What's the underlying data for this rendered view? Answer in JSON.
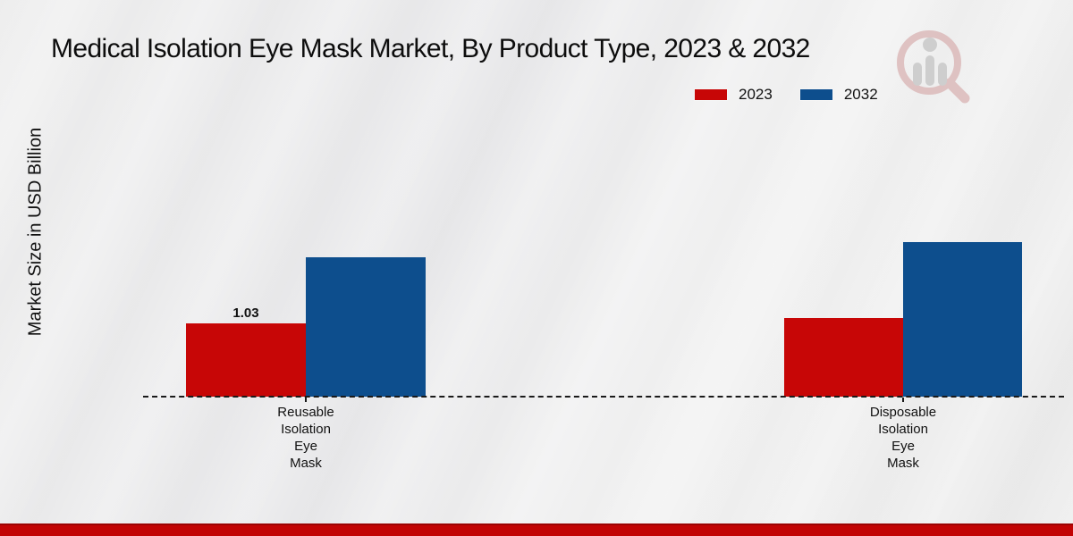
{
  "title": "Medical Isolation Eye Mask Market, By Product Type, 2023 & 2032",
  "y_axis_label": "Market Size in USD Billion",
  "legend": [
    {
      "label": "2023",
      "color": "#c70606"
    },
    {
      "label": "2032",
      "color": "#0d4e8d"
    }
  ],
  "colors": {
    "bar_2023": "#c70606",
    "bar_2032": "#0d4e8d",
    "footer_strip": "#c20404",
    "baseline": "#1a1a1a"
  },
  "logo": {
    "name": "market-research-watermark"
  },
  "chart_data": {
    "type": "bar",
    "title": "Medical Isolation Eye Mask Market, By Product Type, 2023 & 2032",
    "xlabel": "",
    "ylabel": "Market Size in USD Billion",
    "categories": [
      "Reusable Isolation Eye Mask",
      "Disposable Isolation Eye Mask"
    ],
    "categories_multiline": [
      "Reusable\nIsolation\nEye\nMask",
      "Disposable\nIsolation\nEye\nMask"
    ],
    "series": [
      {
        "name": "2023",
        "color": "#c70606",
        "values": [
          1.03,
          1.1
        ]
      },
      {
        "name": "2032",
        "color": "#0d4e8d",
        "values": [
          1.96,
          2.17
        ]
      }
    ],
    "bar_labels": [
      [
        "1.03",
        ""
      ],
      [
        "",
        ""
      ]
    ],
    "grid": false,
    "y_axis_ticks_visible": false,
    "baseline_style": "dashed",
    "legend_position": "top-right"
  }
}
